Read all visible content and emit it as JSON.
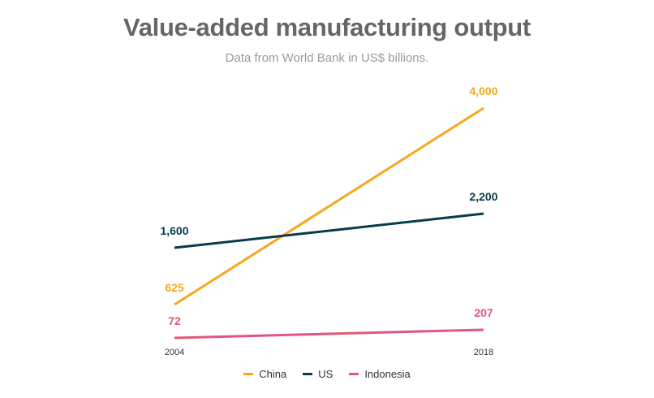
{
  "chart_data": {
    "type": "line",
    "title": "Value-added manufacturing output",
    "subtitle": "Data from World Bank in US$ billions.",
    "x": [
      "2004",
      "2018"
    ],
    "series": [
      {
        "name": "China",
        "values": [
          625,
          4000
        ],
        "labels": [
          "625",
          "4,000"
        ],
        "color": "#f5a81c"
      },
      {
        "name": "US",
        "values": [
          1600,
          2200
        ],
        "labels": [
          "1,600",
          "2,200"
        ],
        "color": "#073b4c"
      },
      {
        "name": "Indonesia",
        "values": [
          72,
          207
        ],
        "labels": [
          "72",
          "207"
        ],
        "color": "#e3567a"
      }
    ],
    "xlabel": "",
    "ylabel": "",
    "grid": false,
    "legend_position": "bottom"
  }
}
